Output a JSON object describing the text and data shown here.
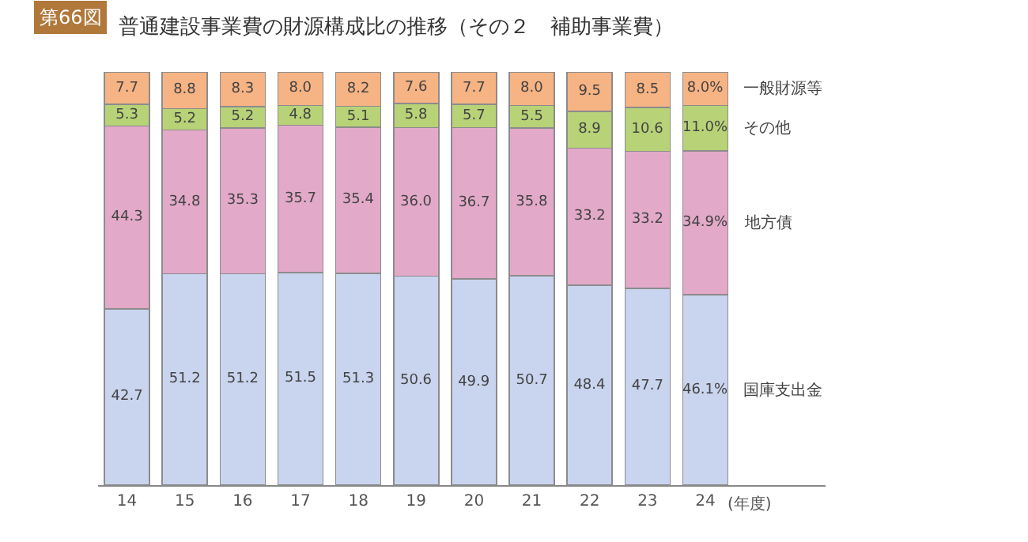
{
  "chart_data": {
    "type": "bar",
    "stacked": true,
    "title": "普通建設事業費の財源構成比の推移（その２　補助事業費）",
    "xlabel": "(年度)",
    "annotations": [
      "第66図"
    ],
    "categories": [
      "14",
      "15",
      "16",
      "17",
      "18",
      "19",
      "20",
      "21",
      "22",
      "23",
      "24"
    ],
    "series": [
      {
        "name": "国庫支出金",
        "color": "#c9d4ef",
        "values": [
          42.7,
          51.2,
          51.2,
          51.5,
          51.3,
          50.6,
          49.9,
          50.7,
          48.4,
          47.7,
          46.1
        ],
        "value_labels": [
          "42.7",
          "51.2",
          "51.2",
          "51.5",
          "51.3",
          "50.6",
          "49.9",
          "50.7",
          "48.4",
          "47.7",
          "46.1%"
        ]
      },
      {
        "name": "地方債",
        "color": "#e3a9c9",
        "values": [
          44.3,
          34.8,
          35.3,
          35.7,
          35.4,
          36.0,
          36.7,
          35.8,
          33.2,
          33.2,
          34.9
        ],
        "value_labels": [
          "44.3",
          "34.8",
          "35.3",
          "35.7",
          "35.4",
          "36.0",
          "36.7",
          "35.8",
          "33.2",
          "33.2",
          "34.9%"
        ]
      },
      {
        "name": "その他",
        "color": "#b8d277",
        "values": [
          5.3,
          5.2,
          5.2,
          4.8,
          5.1,
          5.8,
          5.7,
          5.5,
          8.9,
          10.6,
          11.0
        ],
        "value_labels": [
          "5.3",
          "5.2",
          "5.2",
          "4.8",
          "5.1",
          "5.8",
          "5.7",
          "5.5",
          "8.9",
          "10.6",
          "11.0%"
        ]
      },
      {
        "name": "一般財源等",
        "color": "#f6b384",
        "values": [
          7.7,
          8.8,
          8.3,
          8.0,
          8.2,
          7.6,
          7.7,
          8.0,
          9.5,
          8.5,
          8.0
        ],
        "value_labels": [
          "7.7",
          "8.8",
          "8.3",
          "8.0",
          "8.2",
          "7.6",
          "7.7",
          "8.0",
          "9.5",
          "8.5",
          "8.0%"
        ]
      }
    ],
    "tick_labels": "x",
    "legend": false
  }
}
